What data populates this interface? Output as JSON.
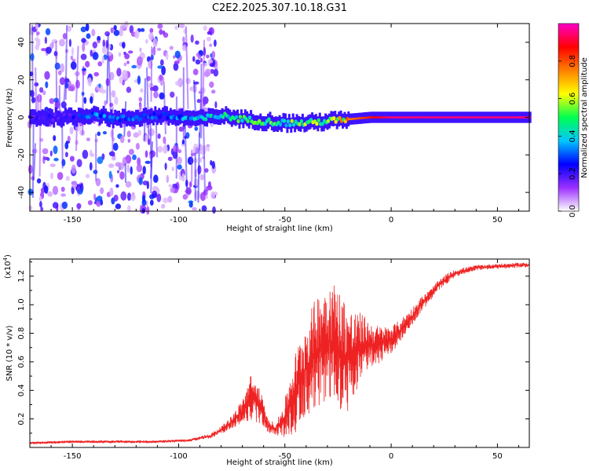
{
  "title": "C2E2.2025.307.10.18.G31",
  "chart_data": [
    {
      "id": "spectrogram",
      "type": "heatmap",
      "xlabel": "Height of straight line (km)",
      "ylabel": "Frequency (Hz)",
      "xlim": [
        -170,
        65
      ],
      "ylim": [
        -50,
        50
      ],
      "x_ticks": [
        "-150",
        "-100",
        "-50",
        "0",
        "50"
      ],
      "x_tick_values": [
        -150,
        -100,
        -50,
        0,
        50
      ],
      "y_ticks": [
        "-40",
        "-20",
        "0",
        "20",
        "40"
      ],
      "y_tick_values": [
        -40,
        -20,
        0,
        20,
        40
      ],
      "description": "Spectral amplitude ridge near 0 Hz across heights; scattered purple noise below ~-85 km; strong red line at 0 Hz from about -25 km upward",
      "ridge": {
        "x": [
          -165,
          -150,
          -140,
          -130,
          -120,
          -110,
          -100,
          -90,
          -80,
          -70,
          -60,
          -50,
          -40,
          -30,
          -20,
          -10,
          0,
          10,
          20,
          30,
          40,
          50,
          65
        ],
        "center_hz": [
          0,
          0,
          2,
          -1,
          0,
          1,
          0,
          -1,
          1,
          -1,
          -2,
          -3,
          -3,
          -2,
          -1,
          0,
          0,
          0,
          0,
          0,
          0,
          0,
          0
        ],
        "amplitude": [
          0.2,
          0.25,
          0.35,
          0.3,
          0.3,
          0.3,
          0.35,
          0.4,
          0.45,
          0.5,
          0.5,
          0.5,
          0.55,
          0.55,
          0.75,
          0.85,
          0.95,
          0.95,
          0.95,
          0.95,
          0.95,
          0.95,
          0.95
        ]
      },
      "colorbar": {
        "label": "Normalized spectral amplitude",
        "ticks": [
          "0.0",
          "0.2",
          "0.4",
          "0.6",
          "0.8"
        ],
        "tick_values": [
          0.0,
          0.2,
          0.4,
          0.6,
          0.8
        ],
        "range": [
          0,
          1
        ],
        "colors": [
          "#ffffff",
          "#9b30ff",
          "#0000ff",
          "#00c8ff",
          "#00ff50",
          "#ffff00",
          "#ff8000",
          "#ff0000",
          "#ff00c8"
        ]
      }
    },
    {
      "id": "snr",
      "type": "line",
      "xlabel": "Height of straight line (km)",
      "ylabel": "SNR (10 * v/v)",
      "y_multiplier": "(x10",
      "y_multiplier_exp": "4",
      "y_multiplier_close": ")",
      "xlim": [
        -170,
        65
      ],
      "ylim": [
        0,
        1.32
      ],
      "x_ticks": [
        "-150",
        "-100",
        "-50",
        "0",
        "50"
      ],
      "x_tick_values": [
        -150,
        -100,
        -50,
        0,
        50
      ],
      "y_ticks": [
        "0.2",
        "0.4",
        "0.6",
        "0.8",
        "1.0",
        "1.2"
      ],
      "y_tick_values": [
        0.2,
        0.4,
        0.6,
        0.8,
        1.0,
        1.2
      ],
      "line_color": "#ee2222",
      "x": [
        -170,
        -150,
        -130,
        -110,
        -95,
        -85,
        -80,
        -75,
        -70,
        -66,
        -62,
        -58,
        -54,
        -50,
        -46,
        -42,
        -38,
        -34,
        -30,
        -26,
        -22,
        -18,
        -14,
        -10,
        -6,
        -2,
        2,
        6,
        10,
        14,
        18,
        22,
        26,
        30,
        40,
        50,
        65
      ],
      "y": [
        0.03,
        0.04,
        0.04,
        0.04,
        0.05,
        0.08,
        0.12,
        0.18,
        0.25,
        0.35,
        0.3,
        0.15,
        0.13,
        0.2,
        0.35,
        0.5,
        0.6,
        0.7,
        0.75,
        0.7,
        0.65,
        0.6,
        0.72,
        0.72,
        0.72,
        0.74,
        0.78,
        0.85,
        0.92,
        1.0,
        1.06,
        1.13,
        1.18,
        1.22,
        1.26,
        1.27,
        1.28
      ],
      "noise": [
        0.01,
        0.01,
        0.01,
        0.01,
        0.01,
        0.02,
        0.03,
        0.05,
        0.1,
        0.18,
        0.15,
        0.05,
        0.05,
        0.15,
        0.3,
        0.35,
        0.4,
        0.45,
        0.5,
        0.5,
        0.45,
        0.4,
        0.25,
        0.18,
        0.15,
        0.12,
        0.1,
        0.08,
        0.07,
        0.06,
        0.05,
        0.04,
        0.04,
        0.03,
        0.02,
        0.02,
        0.02
      ]
    }
  ]
}
